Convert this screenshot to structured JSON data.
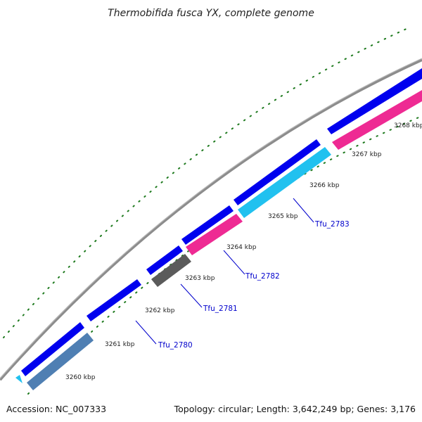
{
  "title": "Thermobifida fusca YX, complete genome",
  "accession_text": "Accession: NC_007333",
  "summary_text": "Topology: circular; Length: 3,642,249 bp; Genes: 3,176",
  "colors": {
    "backbone": "#8c8c8c",
    "forward_cds": "#0000ee",
    "reverse_blue": "#4f7fb3",
    "reverse_pink": "#ee2a93",
    "reverse_cyan": "#21c1ef",
    "reverse_gray": "#5b5b5b",
    "ticks": "#1e7a1e",
    "gene_label": "#0000cc"
  },
  "tick_labels": [
    "3260 kbp",
    "3261 kbp",
    "3262 kbp",
    "3263 kbp",
    "3264 kbp",
    "3265 kbp",
    "3266 kbp",
    "3267 kbp",
    "3268 kbp"
  ],
  "gene_labels": [
    "Tfu_2780",
    "Tfu_2781",
    "Tfu_2782",
    "Tfu_2783"
  ]
}
